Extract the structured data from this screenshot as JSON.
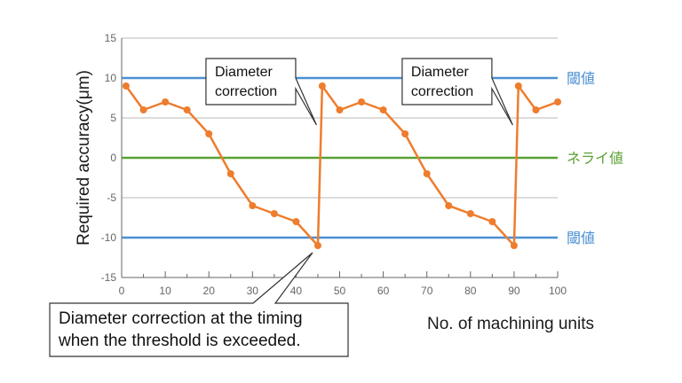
{
  "chart_data": {
    "type": "line",
    "xlabel": "No. of machining units",
    "ylabel": "Required accuracy(μm)",
    "xlim": [
      0,
      100
    ],
    "ylim": [
      -15,
      15
    ],
    "xticks": [
      0,
      10,
      20,
      30,
      40,
      50,
      60,
      70,
      80,
      90,
      100
    ],
    "yticks": [
      15,
      10,
      5,
      0,
      -5,
      -10,
      -15
    ],
    "grid": "horizontal",
    "series": [
      {
        "color": "#ee7d2e",
        "x": [
          1,
          5,
          10,
          15,
          20,
          25,
          30,
          35,
          40,
          45,
          46,
          50,
          55,
          60,
          65,
          70,
          75,
          80,
          85,
          90,
          91,
          95,
          100
        ],
        "y": [
          9,
          6,
          7,
          6,
          3,
          -2,
          -6,
          -7,
          -8,
          -11,
          9,
          6,
          7,
          6,
          3,
          -2,
          -6,
          -7,
          -8,
          -11,
          9,
          6,
          7
        ]
      }
    ],
    "reference_lines": [
      {
        "y": 10,
        "label": "閾値",
        "color": "#4a8fd2"
      },
      {
        "y": 0,
        "label": "ネライ値",
        "color": "#5aa134"
      },
      {
        "y": -10,
        "label": "閾値",
        "color": "#4a8fd2"
      }
    ],
    "annotations": [
      {
        "lines": [
          "Diameter",
          "correction"
        ],
        "points_to": [
          45,
          9
        ]
      },
      {
        "lines": [
          "Diameter",
          "correction"
        ],
        "points_to": [
          90,
          9
        ]
      }
    ],
    "note": {
      "lines": [
        "Diameter correction at the timing",
        "when the threshold is exceeded."
      ],
      "points_to": [
        45,
        -11
      ]
    }
  }
}
